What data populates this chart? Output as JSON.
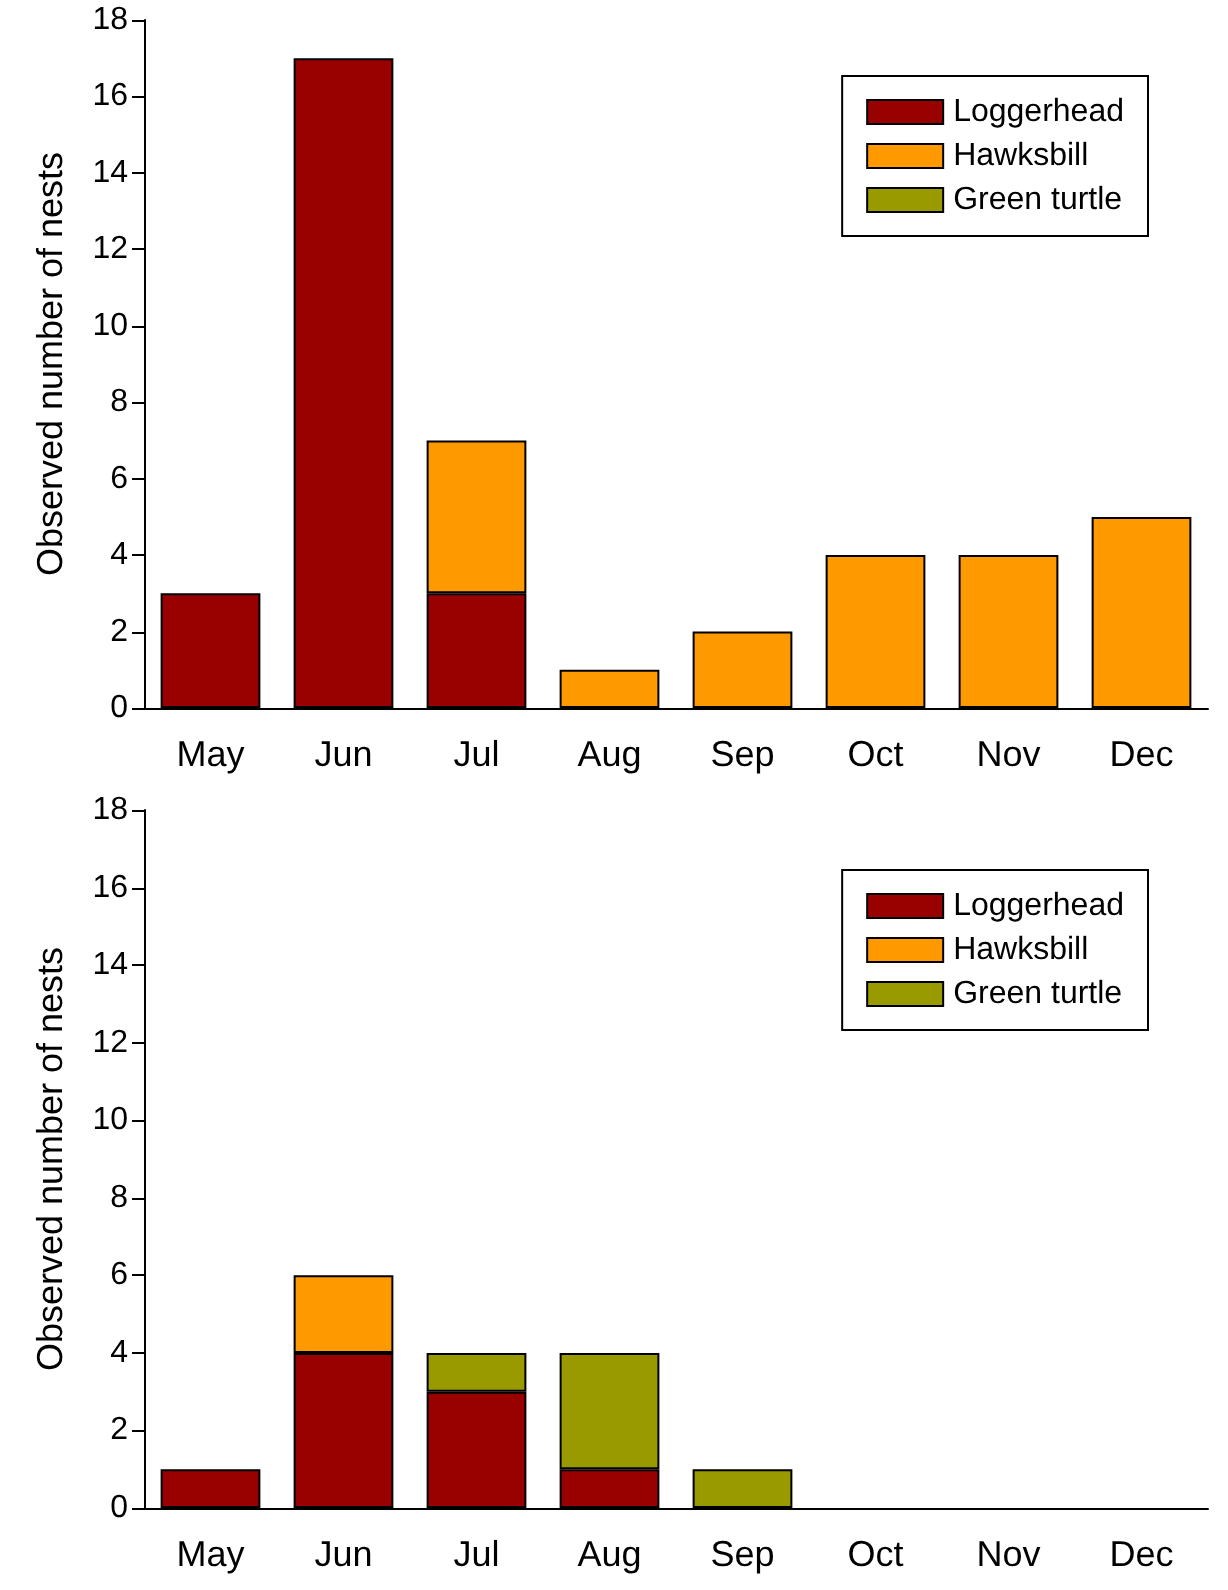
{
  "chart_data": [
    {
      "type": "bar",
      "stacked": true,
      "ylabel": "Observed number of nests",
      "categories": [
        "May",
        "Jun",
        "Jul",
        "Aug",
        "Sep",
        "Oct",
        "Nov",
        "Dec"
      ],
      "ylim": [
        0,
        18
      ],
      "yticks": [
        0,
        2,
        4,
        6,
        8,
        10,
        12,
        14,
        16,
        18
      ],
      "legend": "top right",
      "grid": false,
      "series": [
        {
          "name": "Loggerhead",
          "color": "#990000",
          "values": [
            3,
            17,
            3,
            0,
            0,
            0,
            0,
            0
          ]
        },
        {
          "name": "Hawksbill",
          "color": "#ff9900",
          "values": [
            0,
            0,
            4,
            1,
            2,
            4,
            4,
            5
          ]
        },
        {
          "name": "Green turtle",
          "color": "#999900",
          "values": [
            0,
            0,
            0,
            0,
            0,
            0,
            0,
            0
          ]
        }
      ]
    },
    {
      "type": "bar",
      "stacked": true,
      "ylabel": "Observed number of nests",
      "categories": [
        "May",
        "Jun",
        "Jul",
        "Aug",
        "Sep",
        "Oct",
        "Nov",
        "Dec"
      ],
      "ylim": [
        0,
        18
      ],
      "yticks": [
        0,
        2,
        4,
        6,
        8,
        10,
        12,
        14,
        16,
        18
      ],
      "legend": "top right",
      "grid": false,
      "series": [
        {
          "name": "Loggerhead",
          "color": "#990000",
          "values": [
            1,
            4,
            3,
            1,
            0,
            0,
            0,
            0
          ]
        },
        {
          "name": "Hawksbill",
          "color": "#ff9900",
          "values": [
            0,
            2,
            0,
            0,
            0,
            0,
            0,
            0
          ]
        },
        {
          "name": "Green turtle",
          "color": "#999900",
          "values": [
            0,
            0,
            1,
            3,
            1,
            0,
            0,
            0
          ]
        }
      ]
    }
  ]
}
